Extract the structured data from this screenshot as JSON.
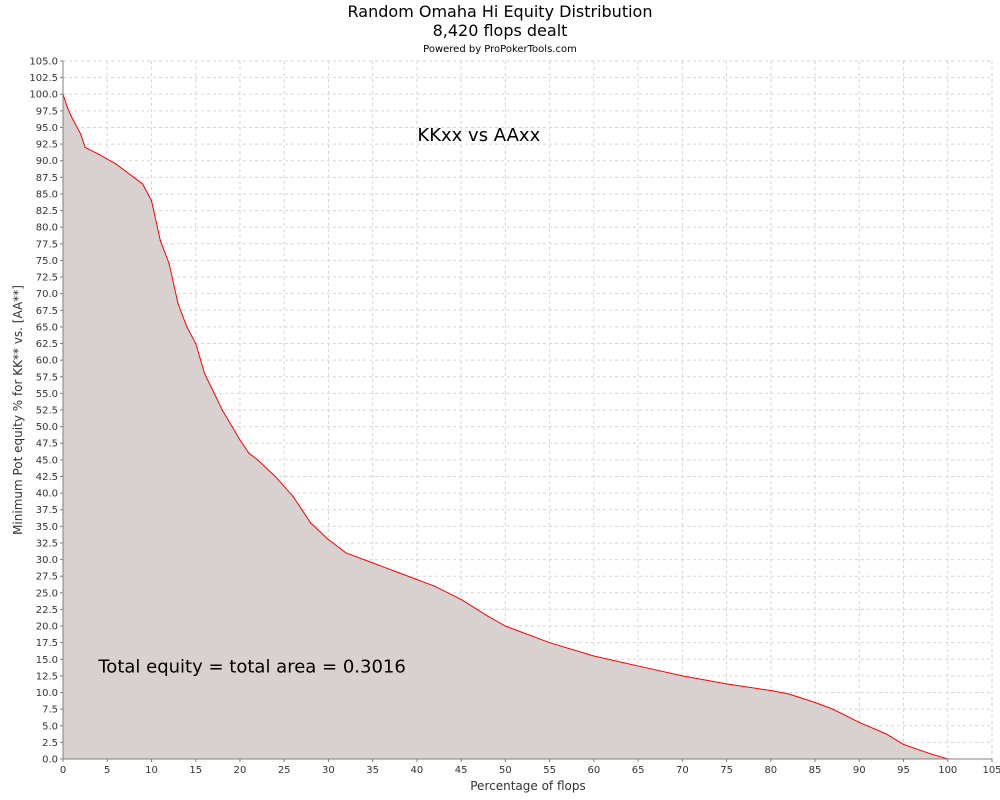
{
  "chart_data": {
    "type": "area",
    "title": "Random Omaha Hi Equity Distribution",
    "subtitle": "8,420 flops dealt",
    "credit": "Powered by ProPokerTools.com",
    "xlabel": "Percentage of flops",
    "ylabel": "Minimum Pot equity % for KK** vs. [AA**]",
    "xlim": [
      0,
      105
    ],
    "ylim": [
      0,
      105
    ],
    "x_ticks": [
      0,
      5,
      10,
      15,
      20,
      25,
      30,
      35,
      40,
      45,
      50,
      55,
      60,
      65,
      70,
      75,
      80,
      85,
      90,
      95,
      100,
      105
    ],
    "y_ticks": [
      0,
      2.5,
      5,
      7.5,
      10,
      12.5,
      15,
      17.5,
      20,
      22.5,
      25,
      27.5,
      30,
      32.5,
      35,
      37.5,
      40,
      42.5,
      45,
      47.5,
      50,
      52.5,
      55,
      57.5,
      60,
      62.5,
      65,
      67.5,
      70,
      72.5,
      75,
      77.5,
      80,
      82.5,
      85,
      87.5,
      90,
      92.5,
      95,
      97.5,
      100,
      102.5,
      105
    ],
    "grid": true,
    "annotations": [
      {
        "text": "KKxx vs AAxx",
        "x": 47,
        "y": 93
      },
      {
        "text": "Total equity = total area = 0.3016",
        "x": 4,
        "y": 13
      }
    ],
    "series": [
      {
        "color": "#ff0000",
        "fill": "#d9d0d0",
        "x": [
          0,
          0.5,
          1,
          2,
          2.5,
          4,
          6,
          8,
          9,
          10,
          11,
          12,
          13,
          14,
          15,
          16,
          18,
          20,
          21,
          22,
          24,
          26,
          27,
          28,
          30,
          32,
          35,
          38,
          40,
          42,
          45,
          48,
          50,
          55,
          60,
          65,
          70,
          75,
          80,
          82,
          85,
          87,
          90,
          93,
          95,
          98,
          100
        ],
        "y": [
          100,
          98,
          96.5,
          94,
          92,
          91,
          89.5,
          87.5,
          86.5,
          84,
          78,
          74.5,
          68.5,
          65,
          62.5,
          58,
          52.5,
          48,
          46,
          45,
          42.5,
          39.5,
          37.5,
          35.5,
          33,
          31,
          29.5,
          28,
          27,
          26,
          24,
          21.5,
          20,
          17.5,
          15.5,
          14,
          12.5,
          11.3,
          10.3,
          9.8,
          8.5,
          7.5,
          5.5,
          3.8,
          2.2,
          0.8,
          0
        ]
      }
    ]
  }
}
